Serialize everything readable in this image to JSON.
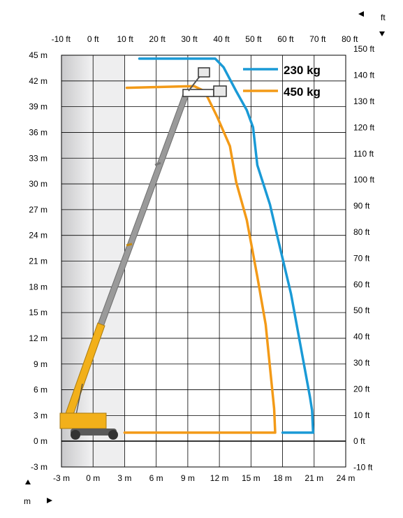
{
  "chart_data": {
    "type": "line",
    "title": "",
    "xlabel": "",
    "ylabel": "",
    "units": {
      "metric": "m",
      "imperial": "ft"
    },
    "x_ticks_m": [
      "-3 m",
      "0 m",
      "3 m",
      "6 m",
      "9 m",
      "12 m",
      "15 m",
      "18 m",
      "21 m",
      "24 m"
    ],
    "y_ticks_m": [
      "45 m",
      "42 m",
      "39 m",
      "36 m",
      "33 m",
      "30 m",
      "27 m",
      "24 m",
      "21 m",
      "18 m",
      "15 m",
      "12 m",
      "9 m",
      "6 m",
      "3 m",
      "0 m",
      "-3 m"
    ],
    "x_ticks_ft": [
      "-10 ft",
      "0 ft",
      "10 ft",
      "20 ft",
      "30 ft",
      "40 ft",
      "50 ft",
      "60 ft",
      "70 ft",
      "80 ft"
    ],
    "y_ticks_ft": [
      "150 ft",
      "140 ft",
      "130 ft",
      "120 ft",
      "110 ft",
      "100 ft",
      "90 ft",
      "80 ft",
      "70 ft",
      "60 ft",
      "50 ft",
      "40 ft",
      "30 ft",
      "20 ft",
      "10 ft",
      "0 ft",
      "-10 ft"
    ],
    "xlim_m": [
      -3,
      24
    ],
    "ylim_m": [
      -3,
      45
    ],
    "grid": true,
    "legend_position": "top-right",
    "series": [
      {
        "name": "230 kg",
        "color": "#1a9ad6",
        "x": [
          4.4,
          11.6,
          12.4,
          13.6,
          14.6,
          15.2,
          15.6,
          16.8,
          17.6,
          18.8,
          20.6,
          20.8,
          20.9,
          18.0
        ],
        "y": [
          44.6,
          44.6,
          43.6,
          40.8,
          38.6,
          36.6,
          32.2,
          27.6,
          23.4,
          17.2,
          5.2,
          3.6,
          1.0,
          1.0
        ]
      },
      {
        "name": "450 kg",
        "color": "#f39a17",
        "x": [
          3.2,
          9.6,
          10.6,
          11.8,
          13.0,
          13.6,
          14.6,
          15.6,
          16.4,
          17.2,
          17.3,
          3.0
        ],
        "y": [
          41.2,
          41.4,
          40.8,
          37.8,
          34.4,
          30.2,
          25.8,
          19.2,
          13.6,
          3.8,
          1.0,
          1.0
        ]
      }
    ]
  },
  "unit_selector": {
    "imperial": "ft",
    "metric": "m"
  }
}
